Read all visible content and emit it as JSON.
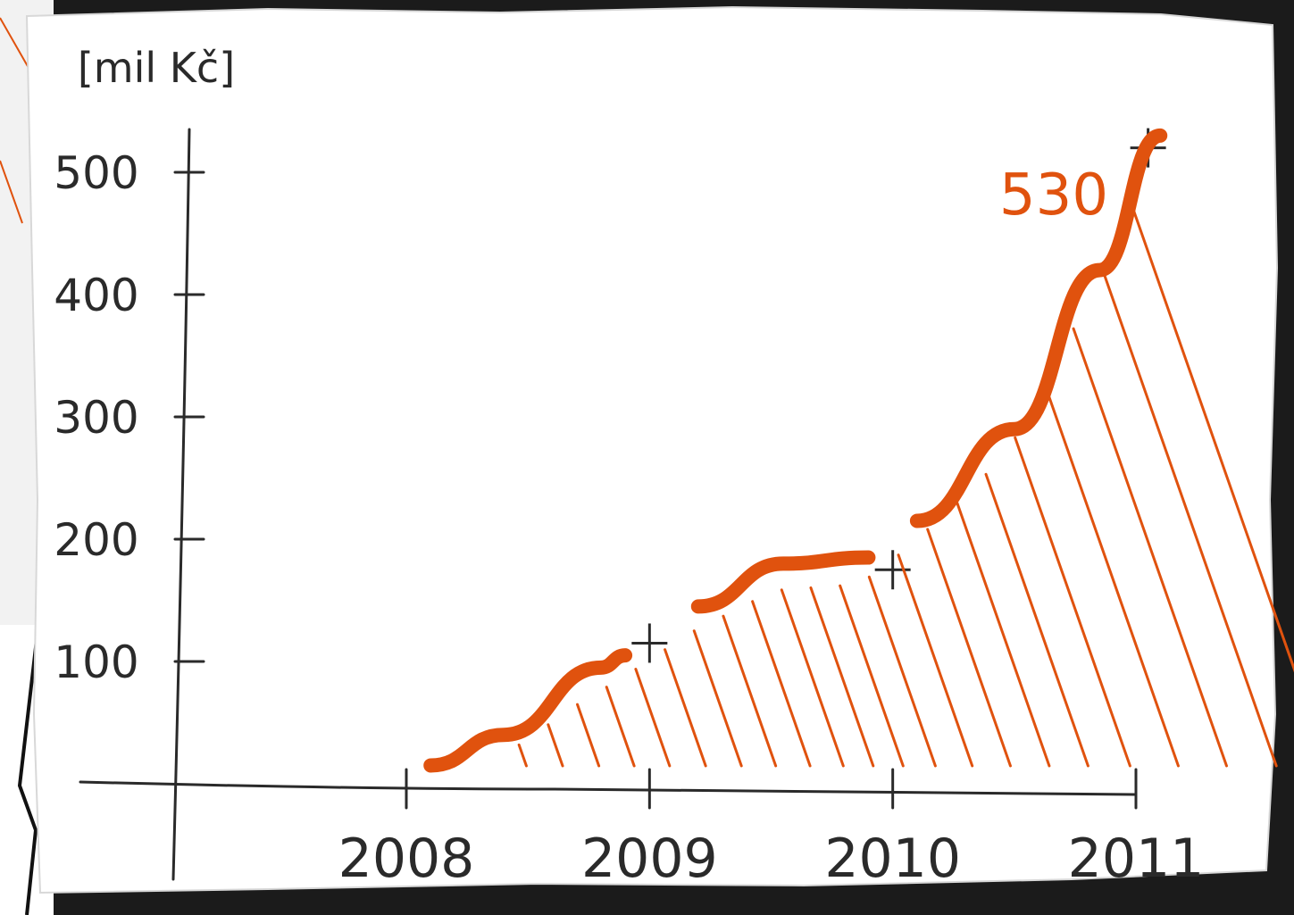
{
  "chart_data": {
    "type": "area",
    "unit_label": "[mil Kč]",
    "y_ticks": [
      "100",
      "200",
      "300",
      "400",
      "500"
    ],
    "x_ticks": [
      "2008",
      "2009",
      "2010",
      "2011"
    ],
    "ylim": [
      0,
      530
    ],
    "xlim": [
      2008,
      2011
    ],
    "annotation": "530",
    "line_color": "#e0520e",
    "ink_color": "#2a2a2a",
    "segments": [
      {
        "x": [
          2008.1,
          2008.4,
          2008.8,
          2008.9
        ],
        "y": [
          15,
          40,
          95,
          105
        ]
      },
      {
        "x": [
          2009.2,
          2009.55,
          2009.9
        ],
        "y": [
          145,
          180,
          185
        ]
      },
      {
        "x": [
          2010.1,
          2010.5,
          2010.85,
          2011.1
        ],
        "y": [
          215,
          290,
          420,
          530
        ]
      }
    ],
    "grid": false,
    "legend": false
  }
}
